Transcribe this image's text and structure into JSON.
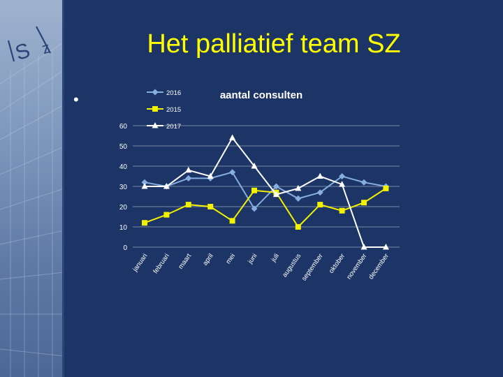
{
  "slide": {
    "title": "Het palliatief team SZ",
    "bullet": "•",
    "logo_text": "SZ",
    "colors": {
      "background": "#1c3466",
      "title": "#ffff00"
    }
  },
  "chart_data": {
    "type": "line",
    "title": "aantal consulten",
    "xlabel": "",
    "ylabel": "",
    "ylim": [
      0,
      60
    ],
    "yticks": [
      0,
      10,
      20,
      30,
      40,
      50,
      60
    ],
    "grid": true,
    "legend_position": "top-left",
    "categories": [
      "januari",
      "februari",
      "maart",
      "april",
      "mei",
      "juni",
      "juli",
      "augustus",
      "september",
      "oktober",
      "november",
      "december"
    ],
    "series": [
      {
        "name": "2016",
        "color": "#86aee0",
        "marker": "diamond",
        "values": [
          32,
          30,
          34,
          34,
          37,
          19,
          30,
          24,
          27,
          35,
          32,
          30
        ]
      },
      {
        "name": "2015",
        "color": "#f2f200",
        "marker": "square",
        "values": [
          12,
          16,
          21,
          20,
          13,
          28,
          27,
          10,
          21,
          18,
          22,
          29
        ]
      },
      {
        "name": "2017",
        "color": "#ffffff",
        "marker": "triangle",
        "values": [
          30,
          30,
          38,
          35,
          54,
          40,
          26,
          29,
          35,
          31,
          0,
          0
        ]
      }
    ]
  }
}
